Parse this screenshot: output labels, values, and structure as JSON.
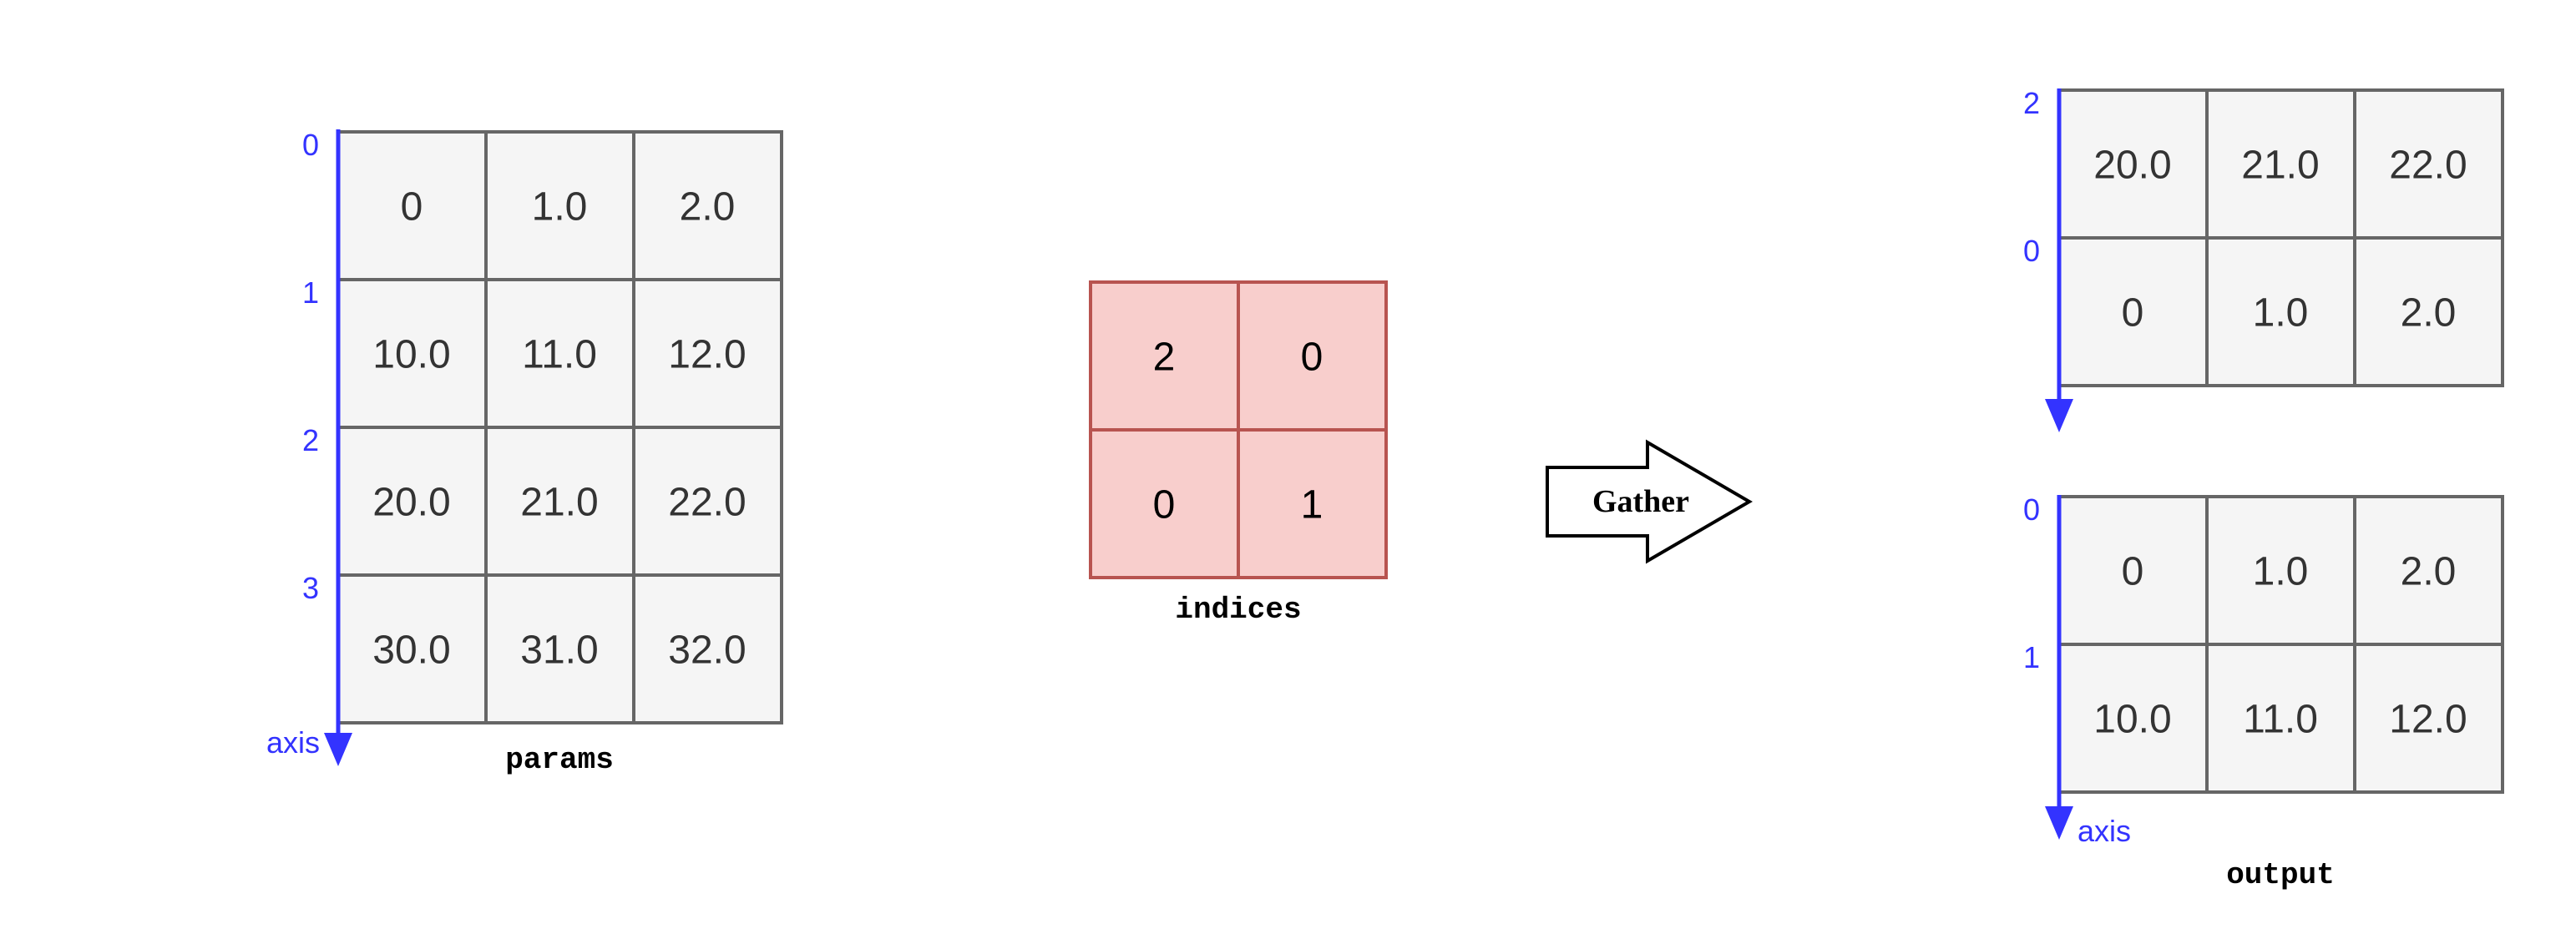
{
  "params": {
    "caption": "params",
    "axis_label": "axis",
    "row_labels": [
      "0",
      "1",
      "2",
      "3"
    ],
    "rows": [
      [
        "0",
        "1.0",
        "2.0"
      ],
      [
        "10.0",
        "11.0",
        "12.0"
      ],
      [
        "20.0",
        "21.0",
        "22.0"
      ],
      [
        "30.0",
        "31.0",
        "32.0"
      ]
    ]
  },
  "indices": {
    "caption": "indices",
    "rows": [
      [
        "2",
        "0"
      ],
      [
        "0",
        "1"
      ]
    ]
  },
  "operation": {
    "label": "Gather"
  },
  "output": {
    "caption": "output",
    "axis_label": "axis",
    "blocks": [
      {
        "row_labels": [
          "2",
          "0"
        ],
        "rows": [
          [
            "20.0",
            "21.0",
            "22.0"
          ],
          [
            "0",
            "1.0",
            "2.0"
          ]
        ]
      },
      {
        "row_labels": [
          "0",
          "1"
        ],
        "rows": [
          [
            "0",
            "1.0",
            "2.0"
          ],
          [
            "10.0",
            "11.0",
            "12.0"
          ]
        ]
      }
    ]
  },
  "colors": {
    "axis": "#3333ff",
    "params_fill": "#f5f5f5",
    "params_stroke": "#666666",
    "indices_fill": "#f8cecc",
    "indices_stroke": "#b85450"
  }
}
